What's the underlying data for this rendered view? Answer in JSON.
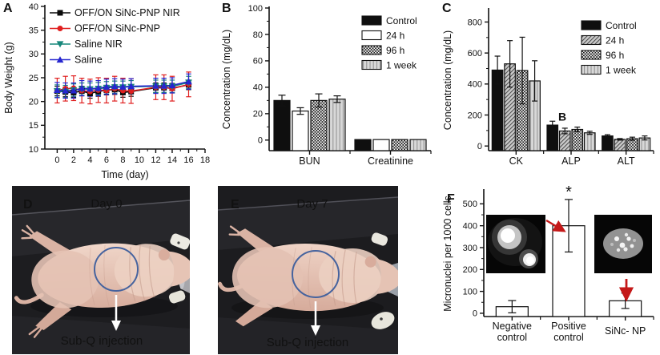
{
  "figure": {
    "background": "#ffffff"
  },
  "panels": {
    "A": {
      "label": "A"
    },
    "B": {
      "label": "B"
    },
    "C": {
      "label": "C"
    },
    "D": {
      "label": "D",
      "title": "Day 0",
      "caption": "Sub-Q injection"
    },
    "E": {
      "label": "E",
      "title": "Day 7",
      "caption": "Sub-Q injection"
    },
    "F": {
      "label": "F",
      "insets": [
        {
          "name": "micrograph-positive",
          "description": "fluorescence image: nucleus with micronucleus"
        },
        {
          "name": "micrograph-sinc",
          "description": "fluorescence image: intact nucleus"
        }
      ],
      "arrow_color": "#c41818"
    }
  },
  "chart_data": [
    {
      "panel": "A",
      "type": "line",
      "title": "",
      "xlabel": "Time (day)",
      "ylabel": "Body Weight (g)",
      "xlim": [
        -1.5,
        18
      ],
      "ylim": [
        10,
        40
      ],
      "xticks": [
        0,
        2,
        4,
        6,
        8,
        10,
        12,
        14,
        16,
        18
      ],
      "yticks": [
        10,
        15,
        20,
        25,
        30,
        35,
        40
      ],
      "legend_position": "top-left",
      "x": [
        0,
        1,
        2,
        3,
        4,
        5,
        6,
        7,
        8,
        9,
        12,
        13,
        14,
        16
      ],
      "series": [
        {
          "name": "OFF/ON SiNc-PNP NIR",
          "color": "#0a0a0a",
          "marker": "square",
          "err": 1.0,
          "values": [
            22.2,
            22.0,
            21.9,
            22.2,
            21.7,
            22.1,
            22.4,
            22.5,
            21.9,
            22.1,
            22.9,
            22.9,
            22.8,
            23.5
          ]
        },
        {
          "name": "OFF/ON SiNc-PNP",
          "color": "#e01f1f",
          "marker": "circle",
          "err": 2.6,
          "values": [
            22.3,
            22.7,
            22.8,
            22.3,
            22.1,
            22.4,
            22.3,
            22.7,
            22.3,
            22.2,
            23.0,
            23.0,
            22.7,
            23.6
          ]
        },
        {
          "name": "Saline NIR",
          "color": "#17877b",
          "marker": "triangle-down",
          "err": 1.3,
          "values": [
            22.2,
            22.1,
            22.4,
            22.6,
            22.6,
            22.7,
            22.9,
            23.0,
            23.0,
            23.1,
            23.2,
            23.2,
            23.2,
            24.0
          ]
        },
        {
          "name": "Saline",
          "color": "#2626cf",
          "marker": "triangle-up",
          "err": 1.6,
          "values": [
            22.4,
            22.3,
            22.3,
            22.8,
            22.7,
            22.8,
            23.1,
            23.2,
            23.1,
            23.2,
            23.3,
            23.3,
            23.4,
            24.2
          ]
        }
      ]
    },
    {
      "panel": "B",
      "type": "bar",
      "title": "",
      "xlabel": "",
      "ylabel": "Concentration (mg/dL)",
      "ylim": [
        -8,
        100
      ],
      "yticks": [
        0,
        20,
        40,
        60,
        80,
        100
      ],
      "legend_position": "top-right",
      "categories": [
        [
          "BUN"
        ],
        [
          "Creatinine"
        ]
      ],
      "series": [
        {
          "name": "Control",
          "fill": "black",
          "values": [
            30,
            0.4
          ],
          "err": [
            4,
            0.2
          ]
        },
        {
          "name": "24 h",
          "fill": "white",
          "values": [
            22,
            0.4
          ],
          "err": [
            2.5,
            0.2
          ]
        },
        {
          "name": "96 h",
          "fill": "checker",
          "values": [
            30,
            0.4
          ],
          "err": [
            5,
            0.2
          ]
        },
        {
          "name": "1 week",
          "fill": "vstripe",
          "values": [
            31,
            0.4
          ],
          "err": [
            2.5,
            0.2
          ]
        }
      ]
    },
    {
      "panel": "C",
      "type": "bar",
      "title": "",
      "xlabel": "",
      "ylabel": "Concentration (mg/dL)",
      "ylim": [
        -30,
        880
      ],
      "yticks": [
        0,
        200,
        400,
        600,
        800
      ],
      "legend_position": "top-right",
      "categories": [
        [
          "CK"
        ],
        [
          "ALP"
        ],
        [
          "ALT"
        ]
      ],
      "series": [
        {
          "name": "Control",
          "fill": "black",
          "values": [
            490,
            135,
            65
          ],
          "err": [
            90,
            25,
            8
          ]
        },
        {
          "name": "24 h",
          "fill": "diag",
          "values": [
            530,
            97,
            43
          ],
          "err": [
            150,
            18,
            5
          ]
        },
        {
          "name": "96 h",
          "fill": "checker",
          "values": [
            487,
            107,
            47
          ],
          "err": [
            215,
            15,
            10
          ]
        },
        {
          "name": "1 week",
          "fill": "vstripe",
          "values": [
            420,
            85,
            52
          ],
          "err": [
            130,
            10,
            13
          ]
        }
      ],
      "annotation": {
        "text": "B",
        "category_index": 1,
        "value": 165,
        "dx": -16
      }
    },
    {
      "panel": "F",
      "type": "bar",
      "title": "",
      "xlabel": "",
      "ylabel": "Micronuclei per 1000 cells",
      "ylim": [
        -15,
        560
      ],
      "yticks": [
        0,
        100,
        200,
        300,
        400,
        500
      ],
      "legend_position": "none",
      "categories": [
        [
          "Negative",
          "control"
        ],
        [
          "Positive",
          "control"
        ],
        [
          "SiNc- NP"
        ]
      ],
      "series": [
        {
          "name": "",
          "fill": "white",
          "values": [
            30,
            400,
            57
          ],
          "err": [
            28,
            120,
            35
          ]
        }
      ],
      "significance": {
        "symbol": "*",
        "category_index": 1
      }
    }
  ]
}
